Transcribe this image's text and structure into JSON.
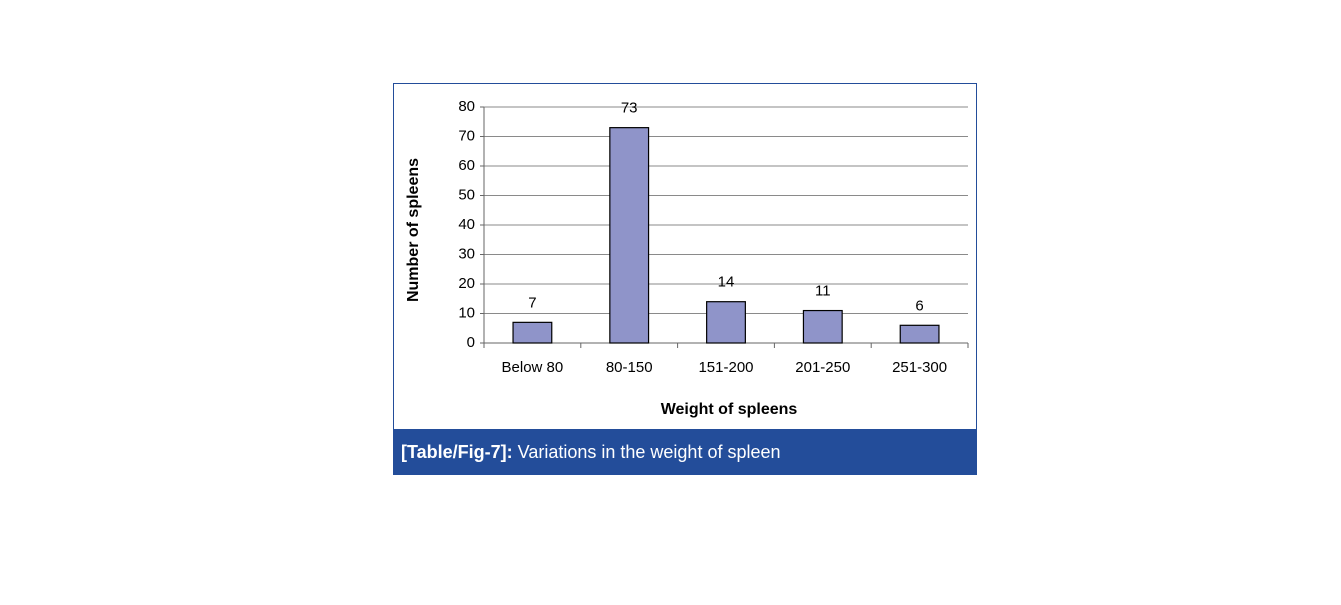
{
  "chart_data": {
    "type": "bar",
    "categories": [
      "Below 80",
      "80-150",
      "151-200",
      "201-250",
      "251-300"
    ],
    "values": [
      7,
      73,
      14,
      11,
      6
    ],
    "color": "#8f94c9",
    "ylim": [
      0,
      80
    ],
    "yticks": [
      0,
      10,
      20,
      30,
      40,
      50,
      60,
      70,
      80
    ],
    "grid": true,
    "xlabel": "Weight of spleens",
    "ylabel": "Number of spleens"
  },
  "caption": {
    "label": "[Table/Fig-7]:",
    "text": "Variations in the weight of spleen"
  }
}
